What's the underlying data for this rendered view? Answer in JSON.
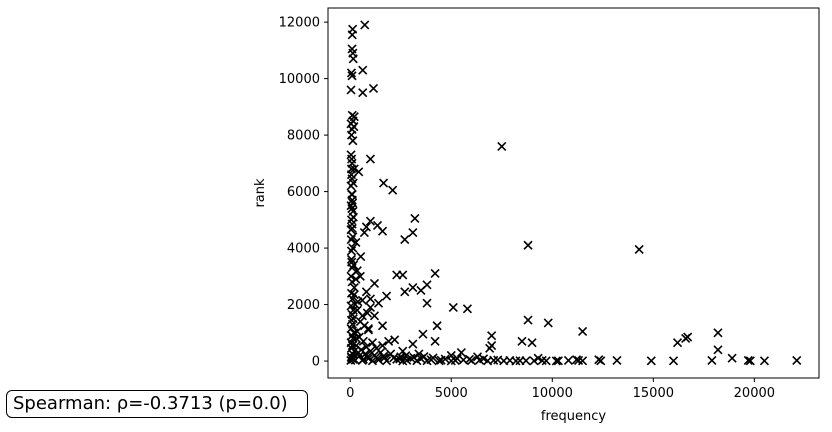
{
  "chart_data": {
    "type": "scatter",
    "xlabel": "frequency",
    "ylabel": "rank",
    "xlim": [
      -1100,
      23200
    ],
    "ylim": [
      -600,
      12500
    ],
    "xticks": [
      0,
      5000,
      10000,
      15000,
      20000
    ],
    "yticks": [
      0,
      2000,
      4000,
      6000,
      8000,
      10000,
      12000
    ],
    "marker": "x",
    "color": "#000000",
    "annotation": "Spearman: ρ=-0.3713 (p=0.0)",
    "points": [
      [
        720,
        11900
      ],
      [
        120,
        11750
      ],
      [
        100,
        11550
      ],
      [
        90,
        11050
      ],
      [
        130,
        10900
      ],
      [
        150,
        10700
      ],
      [
        620,
        10300
      ],
      [
        60,
        10200
      ],
      [
        90,
        10100
      ],
      [
        1150,
        9650
      ],
      [
        40,
        9600
      ],
      [
        620,
        9500
      ],
      [
        100,
        8700
      ],
      [
        200,
        8650
      ],
      [
        140,
        8500
      ],
      [
        40,
        8400
      ],
      [
        180,
        8300
      ],
      [
        90,
        8200
      ],
      [
        60,
        8000
      ],
      [
        130,
        7800
      ],
      [
        7500,
        7600
      ],
      [
        40,
        7300
      ],
      [
        70,
        7150
      ],
      [
        1000,
        7150
      ],
      [
        90,
        7000
      ],
      [
        60,
        6800
      ],
      [
        420,
        6700
      ],
      [
        60,
        6600
      ],
      [
        90,
        6450
      ],
      [
        1650,
        6300
      ],
      [
        40,
        6200
      ],
      [
        2100,
        6050
      ],
      [
        70,
        5900
      ],
      [
        100,
        5700
      ],
      [
        40,
        5500
      ],
      [
        140,
        5300
      ],
      [
        3200,
        5050
      ],
      [
        60,
        5000
      ],
      [
        1000,
        4950
      ],
      [
        90,
        4850
      ],
      [
        800,
        4750
      ],
      [
        1350,
        4800
      ],
      [
        40,
        4650
      ],
      [
        700,
        4550
      ],
      [
        1600,
        4600
      ],
      [
        3100,
        4550
      ],
      [
        130,
        4400
      ],
      [
        2700,
        4300
      ],
      [
        280,
        4200
      ],
      [
        8800,
        4100
      ],
      [
        14300,
        3950
      ],
      [
        60,
        3900
      ],
      [
        520,
        3700
      ],
      [
        70,
        3500
      ],
      [
        350,
        3200
      ],
      [
        90,
        3300
      ],
      [
        4200,
        3100
      ],
      [
        2300,
        3050
      ],
      [
        2600,
        3050
      ],
      [
        500,
        3000
      ],
      [
        280,
        2900
      ],
      [
        1200,
        2750
      ],
      [
        3800,
        2700
      ],
      [
        3100,
        2600
      ],
      [
        3500,
        2500
      ],
      [
        2700,
        2450
      ],
      [
        800,
        2450
      ],
      [
        200,
        2350
      ],
      [
        1800,
        2300
      ],
      [
        1000,
        2200
      ],
      [
        600,
        2150
      ],
      [
        380,
        2100
      ],
      [
        3800,
        2050
      ],
      [
        1400,
        2050
      ],
      [
        250,
        2000
      ],
      [
        5100,
        1900
      ],
      [
        5800,
        1850
      ],
      [
        1000,
        1900
      ],
      [
        350,
        1800
      ],
      [
        850,
        1700
      ],
      [
        600,
        1600
      ],
      [
        150,
        1500
      ],
      [
        1200,
        1600
      ],
      [
        8800,
        1450
      ],
      [
        9800,
        1350
      ],
      [
        4300,
        1250
      ],
      [
        1600,
        1250
      ],
      [
        900,
        1150
      ],
      [
        11500,
        1050
      ],
      [
        18200,
        1000
      ],
      [
        3600,
        950
      ],
      [
        7000,
        900
      ],
      [
        16700,
        850
      ],
      [
        16600,
        800
      ],
      [
        300,
        800
      ],
      [
        2200,
        750
      ],
      [
        4200,
        700
      ],
      [
        8500,
        700
      ],
      [
        1900,
        700
      ],
      [
        9000,
        650
      ],
      [
        16200,
        650
      ],
      [
        3100,
        600
      ],
      [
        7000,
        550
      ],
      [
        1600,
        550
      ],
      [
        6900,
        450
      ],
      [
        18200,
        400
      ],
      [
        2600,
        350
      ],
      [
        5500,
        300
      ],
      [
        400,
        300
      ],
      [
        3400,
        250
      ],
      [
        5000,
        200
      ],
      [
        6300,
        150
      ],
      [
        9300,
        100
      ],
      [
        18900,
        100
      ],
      [
        12300,
        50
      ],
      [
        17900,
        20
      ],
      [
        11200,
        50
      ],
      [
        7300,
        40
      ],
      [
        10800,
        20
      ],
      [
        11300,
        20
      ],
      [
        11500,
        10
      ],
      [
        12400,
        10
      ],
      [
        13200,
        20
      ],
      [
        14900,
        10
      ],
      [
        16000,
        10
      ],
      [
        19700,
        20
      ],
      [
        19800,
        10
      ],
      [
        20500,
        10
      ],
      [
        22100,
        20
      ],
      [
        10300,
        10
      ],
      [
        9500,
        20
      ],
      [
        8700,
        15
      ],
      [
        200,
        6800
      ],
      [
        150,
        6300
      ],
      [
        100,
        5900
      ],
      [
        120,
        5600
      ],
      [
        80,
        5400
      ],
      [
        150,
        5100
      ],
      [
        100,
        4700
      ],
      [
        50,
        4300
      ],
      [
        130,
        4000
      ],
      [
        60,
        3600
      ],
      [
        170,
        3400
      ],
      [
        40,
        3000
      ],
      [
        90,
        2800
      ],
      [
        200,
        2600
      ],
      [
        60,
        2400
      ],
      [
        110,
        2200
      ],
      [
        40,
        1950
      ],
      [
        150,
        1800
      ],
      [
        90,
        1650
      ],
      [
        60,
        1450
      ],
      [
        110,
        1300
      ],
      [
        40,
        1150
      ],
      [
        180,
        1000
      ],
      [
        80,
        900
      ],
      [
        140,
        800
      ],
      [
        40,
        650
      ],
      [
        100,
        550
      ],
      [
        60,
        450
      ],
      [
        200,
        350
      ],
      [
        120,
        250
      ],
      [
        50,
        150
      ],
      [
        70,
        100
      ],
      [
        150,
        60
      ],
      [
        250,
        30
      ],
      [
        30,
        20
      ],
      [
        500,
        1400
      ],
      [
        700,
        1250
      ],
      [
        900,
        1100
      ],
      [
        350,
        1050
      ],
      [
        450,
        850
      ],
      [
        650,
        700
      ],
      [
        1100,
        650
      ],
      [
        300,
        550
      ],
      [
        800,
        500
      ],
      [
        1300,
        450
      ],
      [
        550,
        400
      ],
      [
        1000,
        350
      ],
      [
        1500,
        300
      ],
      [
        750,
        250
      ],
      [
        2000,
        250
      ],
      [
        1200,
        200
      ],
      [
        450,
        180
      ],
      [
        2500,
        150
      ],
      [
        1700,
        120
      ],
      [
        3000,
        100
      ],
      [
        900,
        90
      ],
      [
        3500,
        80
      ],
      [
        2300,
        60
      ],
      [
        4000,
        50
      ],
      [
        1400,
        40
      ],
      [
        4500,
        30
      ],
      [
        2800,
        25
      ],
      [
        5200,
        20
      ],
      [
        3300,
        15
      ],
      [
        6000,
        15
      ],
      [
        3800,
        10
      ],
      [
        6800,
        10
      ],
      [
        4400,
        8
      ],
      [
        7600,
        8
      ],
      [
        5000,
        5
      ],
      [
        8200,
        5
      ],
      [
        600,
        20
      ],
      [
        1100,
        10
      ],
      [
        1800,
        8
      ],
      [
        2600,
        5
      ],
      [
        5600,
        40
      ],
      [
        6400,
        30
      ],
      [
        7100,
        25
      ],
      [
        7900,
        20
      ],
      [
        8400,
        15
      ],
      [
        9100,
        10
      ],
      [
        9700,
        8
      ],
      [
        10200,
        5
      ],
      [
        650,
        60
      ],
      [
        850,
        140
      ],
      [
        1350,
        90
      ],
      [
        1650,
        170
      ],
      [
        2150,
        110
      ],
      [
        2450,
        70
      ],
      [
        2750,
        190
      ],
      [
        3150,
        130
      ],
      [
        3650,
        160
      ],
      [
        4100,
        110
      ],
      [
        4700,
        70
      ],
      [
        5300,
        90
      ],
      [
        5900,
        60
      ],
      [
        6600,
        80
      ]
    ]
  }
}
